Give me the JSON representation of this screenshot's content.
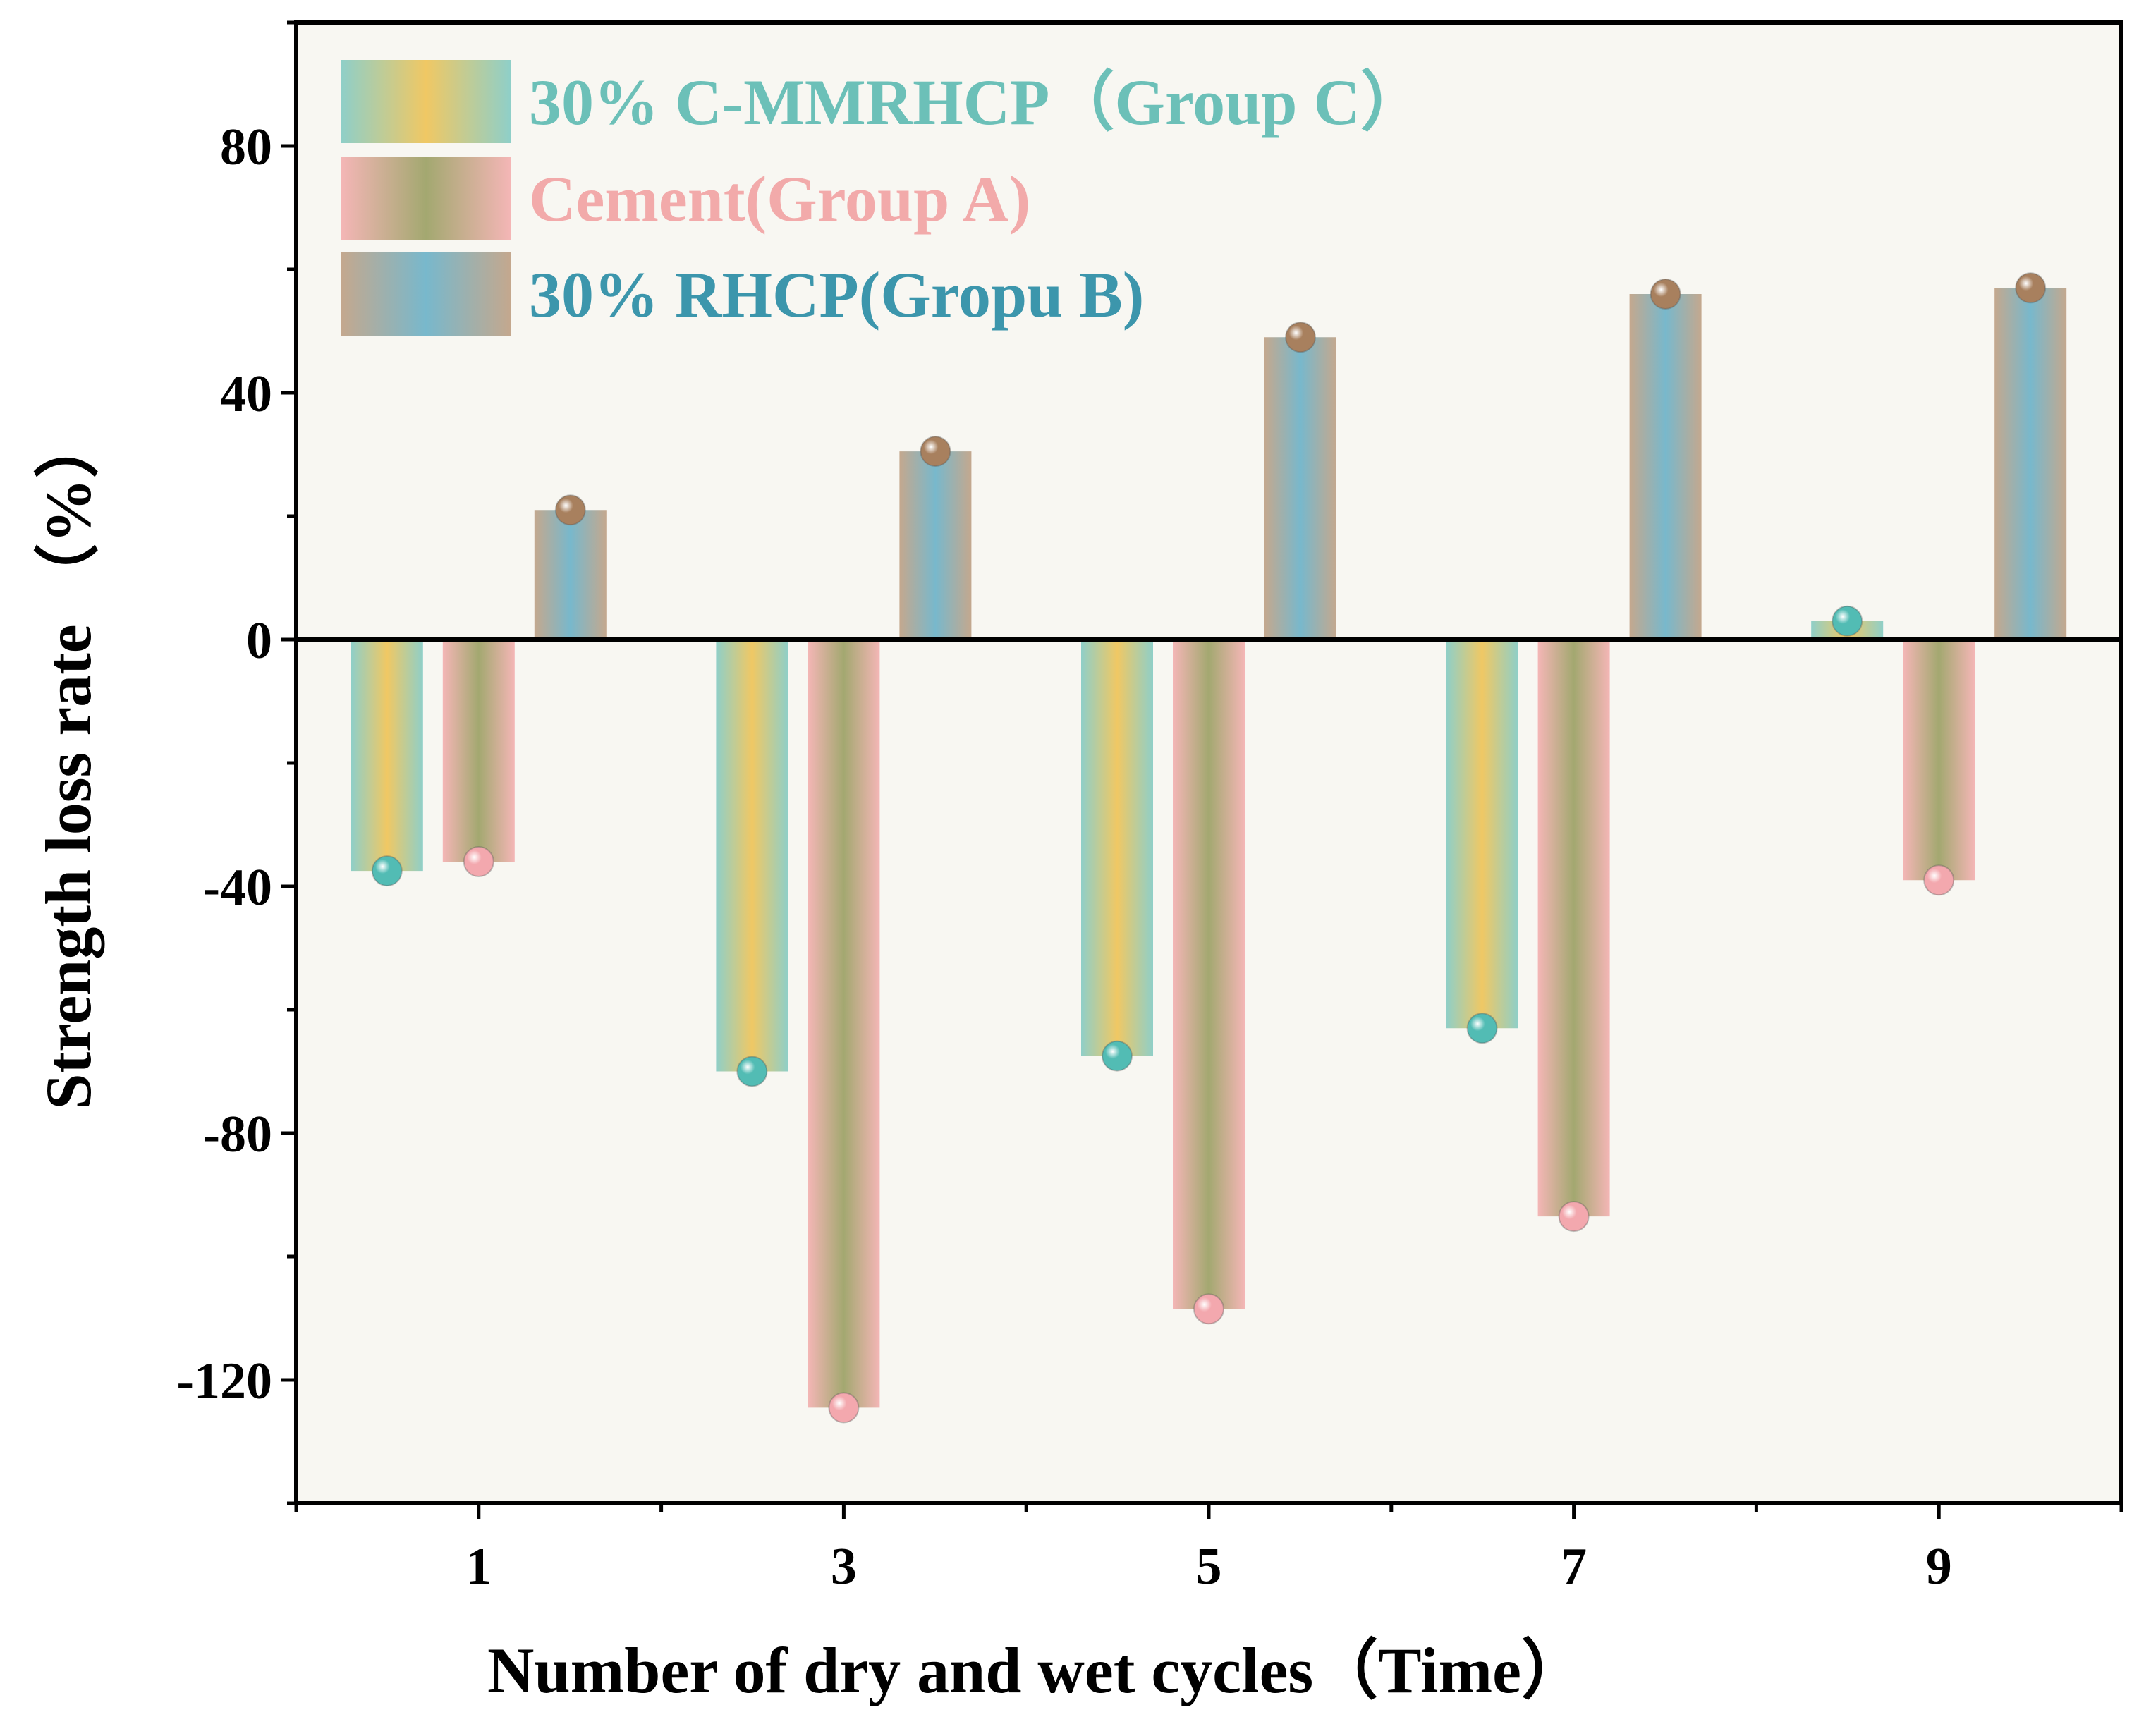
{
  "chart_data": {
    "type": "bar",
    "xlabel": "Number of dry and wet cycles（Time）",
    "ylabel": "Strength loss rate （%）",
    "categories": [
      "1",
      "3",
      "5",
      "7",
      "9"
    ],
    "ylim": [
      -140,
      100
    ],
    "yticks": [
      -120,
      -80,
      -40,
      0,
      40,
      80
    ],
    "yticks_minor_step": 20,
    "grid": false,
    "legend_position": "top-left",
    "series": [
      {
        "name": "30% C-MMRHCP（Group C）",
        "values": [
          -37.5,
          -70,
          -67.5,
          -63,
          3
        ],
        "colors": {
          "edge": "#8fcfc8",
          "mid": "#f0c864",
          "text": "#6cc0b8",
          "marker": "#52bcb4"
        }
      },
      {
        "name": "Cement(Group A)",
        "values": [
          -36,
          -124.5,
          -108.5,
          -93.5,
          -39
        ],
        "colors": {
          "edge": "#f4b6b6",
          "mid": "#a3a870",
          "text": "#f2aaaa",
          "marker": "#f3a8ae"
        }
      },
      {
        "name": "30% RHCP(Gropu B)",
        "values": [
          21,
          30.5,
          49,
          56,
          57
        ],
        "colors": {
          "edge": "#c4a88e",
          "mid": "#78b8cc",
          "text": "#3c96ac",
          "marker": "#a8805e"
        }
      }
    ],
    "plot_background": "#f8f7f2"
  }
}
